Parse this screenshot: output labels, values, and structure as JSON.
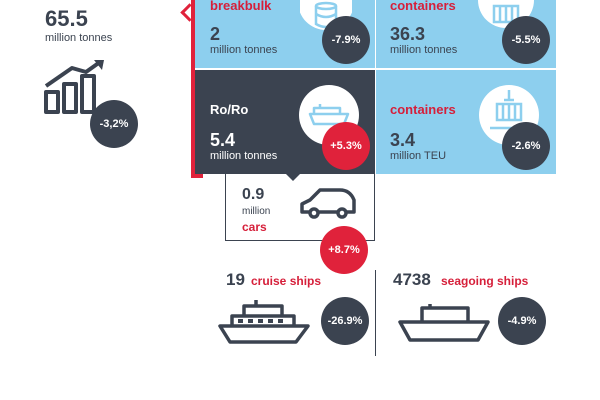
{
  "colors": {
    "dark": "#3b4350",
    "red": "#d61f3a",
    "light_blue": "#8dcfee"
  },
  "total": {
    "value": "65.5",
    "unit": "million tonnes",
    "change": "-3,2%"
  },
  "breakbulk": {
    "label": "breakbulk",
    "value": "2",
    "unit": "million tonnes",
    "change": "-7.9%"
  },
  "containers_tonnes": {
    "label": "containers",
    "value": "36.3",
    "unit": "million tonnes",
    "change": "-5.5%"
  },
  "roro": {
    "label": "Ro/Ro",
    "value": "5.4",
    "unit": "million tonnes",
    "change": "+5.3%"
  },
  "containers_teu": {
    "label": "containers",
    "value": "3.4",
    "unit": "million TEU",
    "change": "-2.6%"
  },
  "cars": {
    "value": "0.9",
    "unit": "million",
    "label": "cars",
    "change": "+8.7%"
  },
  "cruise": {
    "value": "19",
    "label": "cruise ships",
    "change": "-26.9%"
  },
  "seagoing": {
    "value": "4738",
    "label": "seagoing ships",
    "change": "-4.9%"
  },
  "icons": [
    "growth-chart-icon",
    "barrel-icon",
    "container-crane-icon",
    "roro-ship-icon",
    "car-icon",
    "cruise-ship-icon",
    "cargo-ship-icon"
  ]
}
